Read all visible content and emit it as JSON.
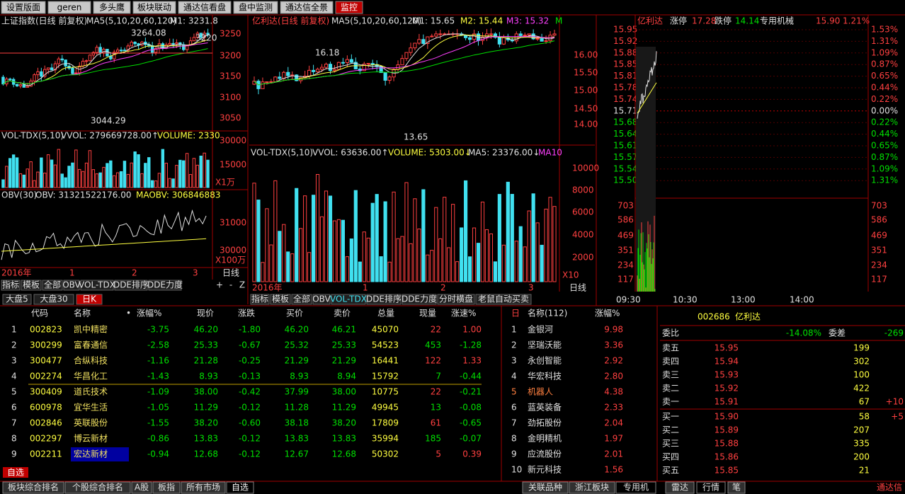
{
  "tabs": {
    "top": [
      "设置版面",
      "geren",
      "多头鹰",
      "板块联动",
      "通达信看盘",
      "盘中监测",
      "通达信全景",
      "监控"
    ]
  },
  "index_chart": {
    "title": "上证指数(日线 前复权)",
    "ma": "MA5(5,10,20,60,120)",
    "m1": "M1: 3231.8",
    "high_label": "3264.08",
    "low_label": "3044.29",
    "last_label": "3220",
    "price_axis": [
      "3250",
      "3200",
      "3150",
      "3100",
      "3050"
    ],
    "vol": {
      "name": "VOL-TDX(5,10)",
      "vvol": "VVOL: 279669728.00↑",
      "volume": "VOLUME: 2330",
      "axis": [
        "30000",
        "15000"
      ],
      "unit": "X1万"
    },
    "obv": {
      "name": "OBV(30)",
      "obv": "OBV: 31321522176.00",
      "maobv": "MAOBV: 306846883",
      "axis": [
        "31000",
        "30000"
      ],
      "unit": "X100万"
    },
    "x_labels": [
      "2016年",
      "1",
      "2",
      "3"
    ],
    "period": "日线",
    "tool_tabs": [
      "指标",
      "模板",
      "全部",
      "OBV",
      "VOL-TDX",
      "DDE排序",
      "DDE力度"
    ],
    "nav": [
      "+",
      "-",
      "Z"
    ]
  },
  "stock_chart": {
    "title": "亿利达(日线 前复权)",
    "ma": "MA5(5,10,20,60,120)",
    "m1": "M1: 15.65",
    "m2": "M2: 15.44",
    "m3": "M3: 15.32",
    "m4": "M",
    "high_label": "16.18",
    "low_label": "13.65",
    "price_axis": [
      "16.00",
      "15.50",
      "15.00",
      "14.50",
      "14.00"
    ],
    "vol": {
      "name": "VOL-TDX(5,10)",
      "vvol": "VVOL: 63636.00↑",
      "volume": "VOLUME: 5303.00↓",
      "ma5": "MA5: 23376.00↓",
      "ma10": "MA10",
      "axis": [
        "10000",
        "8000",
        "6000",
        "4000",
        "2000"
      ],
      "unit": "X10"
    },
    "x_labels": [
      "2016年",
      "1",
      "2",
      "3"
    ],
    "period": "日线",
    "tool_tabs": [
      "指标",
      "模板",
      "全部",
      "OBV",
      "VOL-TDX",
      "DDE排序",
      "DDE力度",
      "分时横盘",
      "老鼠自动买卖"
    ]
  },
  "intraday": {
    "name": "亿利达",
    "limit_up_label": "涨停",
    "limit_up": "17.28",
    "limit_down_label": "跌停",
    "limit_down": "14.14",
    "industry": "专用机械",
    "price": "15.90",
    "change": "1.21%",
    "prices": [
      "15.95",
      "15.92",
      "15.88",
      "15.85",
      "15.81",
      "15.78",
      "15.74",
      "15.71",
      "15.68",
      "15.64",
      "15.61",
      "15.57",
      "15.54",
      "15.50"
    ],
    "pcts": [
      "1.53%",
      "1.31%",
      "1.09%",
      "0.87%",
      "0.65%",
      "0.44%",
      "0.22%",
      "0.00%",
      "0.22%",
      "0.44%",
      "0.65%",
      "0.87%",
      "1.09%",
      "1.31%"
    ],
    "vol_axis": [
      "703",
      "586",
      "469",
      "351",
      "234",
      "117"
    ],
    "times": [
      "09:30",
      "10:30",
      "13:00",
      "14:00"
    ]
  },
  "chart_tabs": [
    "大盘5",
    "大盘30",
    "日K"
  ],
  "quote_table": {
    "headers": [
      "代码",
      "名称",
      "•",
      "涨幅%",
      "现价",
      "涨跌",
      "买价",
      "卖价",
      "总量",
      "现量",
      "涨速%"
    ],
    "rows": [
      [
        "1",
        "002823",
        "凯中精密",
        "-3.75",
        "46.20",
        "-1.80",
        "46.20",
        "46.21",
        "45070",
        "22",
        "1.00"
      ],
      [
        "2",
        "300299",
        "富春通信",
        "-2.58",
        "25.33",
        "-0.67",
        "25.32",
        "25.33",
        "54523",
        "453",
        "-1.28"
      ],
      [
        "3",
        "300477",
        "合纵科技",
        "-1.16",
        "21.28",
        "-0.25",
        "21.29",
        "21.29",
        "16441",
        "122",
        "1.33"
      ],
      [
        "4",
        "002274",
        "华昌化工",
        "-1.43",
        "8.93",
        "-0.13",
        "8.93",
        "8.94",
        "15792",
        "7",
        "-0.44"
      ],
      [
        "5",
        "300409",
        "道氏技术",
        "-1.09",
        "38.00",
        "-0.42",
        "37.99",
        "38.00",
        "10775",
        "22",
        "-0.21"
      ],
      [
        "6",
        "600978",
        "宜华生活",
        "-1.05",
        "11.29",
        "-0.12",
        "11.28",
        "11.29",
        "49945",
        "13",
        "-0.08"
      ],
      [
        "7",
        "002846",
        "英联股份",
        "-1.55",
        "38.20",
        "-0.60",
        "38.18",
        "38.20",
        "17809",
        "61",
        "-0.65"
      ],
      [
        "8",
        "002297",
        "博云新材",
        "-0.86",
        "13.83",
        "-0.12",
        "13.83",
        "13.83",
        "35994",
        "185",
        "-0.07"
      ],
      [
        "9",
        "002211",
        "宏达新材",
        "-0.94",
        "12.68",
        "-0.12",
        "12.67",
        "12.68",
        "50302",
        "5",
        "0.39"
      ]
    ],
    "tag": "自选"
  },
  "ranking": {
    "mark": "日",
    "headers": [
      "名称(112)",
      "涨幅%"
    ],
    "rows": [
      [
        "1",
        "金银河",
        "9.98"
      ],
      [
        "2",
        "坚瑞沃能",
        "3.36"
      ],
      [
        "3",
        "永创智能",
        "2.92"
      ],
      [
        "4",
        "华宏科技",
        "2.80"
      ],
      [
        "5",
        "机器人",
        "4.38"
      ],
      [
        "6",
        "蓝英装备",
        "2.33"
      ],
      [
        "7",
        "劲拓股份",
        "2.04"
      ],
      [
        "8",
        "金明精机",
        "1.97"
      ],
      [
        "9",
        "应流股份",
        "2.01"
      ],
      [
        "10",
        "新元科技",
        "1.56"
      ]
    ]
  },
  "order_book": {
    "code": "002686",
    "name": "亿利达",
    "ratio_label": "委比",
    "ratio": "-14.08%",
    "diff_label": "委差",
    "diff": "-269",
    "sells": [
      [
        "卖五",
        "15.95",
        "199"
      ],
      [
        "卖四",
        "15.94",
        "302"
      ],
      [
        "卖三",
        "15.93",
        "100"
      ],
      [
        "卖二",
        "15.92",
        "422"
      ],
      [
        "卖一",
        "15.91",
        "67"
      ]
    ],
    "buys": [
      [
        "买一",
        "15.90",
        "58"
      ],
      [
        "买二",
        "15.89",
        "207"
      ],
      [
        "买三",
        "15.88",
        "335"
      ],
      [
        "买四",
        "15.86",
        "200"
      ],
      [
        "买五",
        "15.85",
        "21"
      ]
    ],
    "sell1_change": "+10",
    "buy1_change": "+5"
  },
  "bottom_tabs": {
    "left": [
      "板块综合排名",
      "个股综合排名",
      "A股",
      "板指",
      "所有市场",
      "自选"
    ],
    "middle": [
      "关联品种",
      "浙江板块",
      "专用机"
    ],
    "right": [
      "雷达",
      "行情",
      "笔"
    ],
    "brand": "通达信"
  }
}
